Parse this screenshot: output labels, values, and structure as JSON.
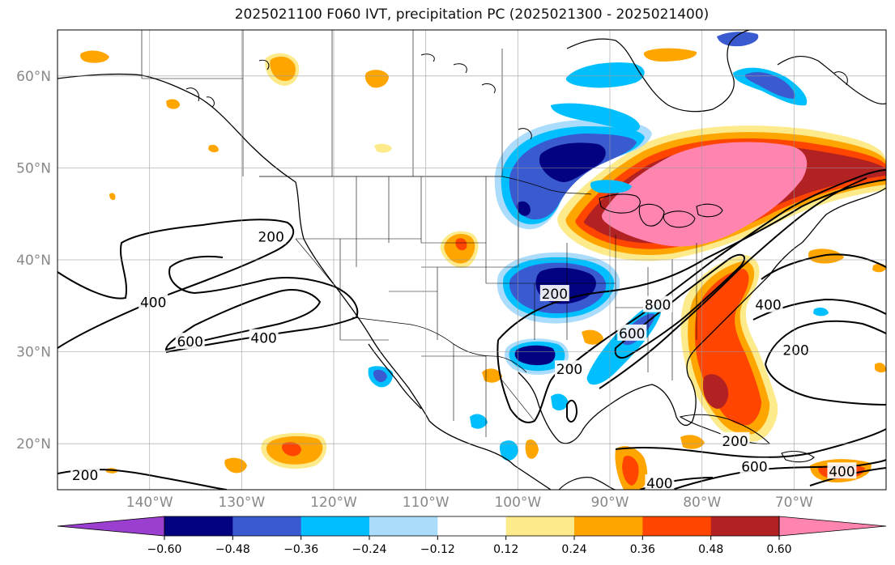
{
  "title": "2025021100 F060 IVT, precipitation PC (2025021300 - 2025021400)",
  "map": {
    "lon_range": [
      -150,
      -60
    ],
    "lat_range": [
      15,
      65
    ],
    "lon_ticks": [
      {
        "lon": -140,
        "label": "140°W"
      },
      {
        "lon": -130,
        "label": "130°W"
      },
      {
        "lon": -120,
        "label": "120°W"
      },
      {
        "lon": -110,
        "label": "110°W"
      },
      {
        "lon": -100,
        "label": "100°W"
      },
      {
        "lon": -90,
        "label": "90°W"
      },
      {
        "lon": -80,
        "label": "80°W"
      },
      {
        "lon": -70,
        "label": "70°W"
      }
    ],
    "lat_ticks": [
      {
        "lat": 60,
        "label": "60°N"
      },
      {
        "lat": 50,
        "label": "50°N"
      },
      {
        "lat": 40,
        "label": "40°N"
      },
      {
        "lat": 30,
        "label": "30°N"
      },
      {
        "lat": 20,
        "label": "20°N"
      }
    ],
    "grid": true,
    "tick_label_color": "#888888"
  },
  "ivt_contour_labels": [
    {
      "text": "200",
      "lon": -126.8,
      "lat": 42.5
    },
    {
      "text": "400",
      "lon": -139.6,
      "lat": 35.4
    },
    {
      "text": "600",
      "lon": -135.6,
      "lat": 31.1
    },
    {
      "text": "400",
      "lon": -127.6,
      "lat": 31.5
    },
    {
      "text": "200",
      "lon": -147.0,
      "lat": 16.6
    },
    {
      "text": "200",
      "lon": -96.0,
      "lat": 36.3
    },
    {
      "text": "200",
      "lon": -94.4,
      "lat": 28.1
    },
    {
      "text": "600",
      "lon": -87.6,
      "lat": 32.0
    },
    {
      "text": "800",
      "lon": -84.8,
      "lat": 35.1
    },
    {
      "text": "400",
      "lon": -72.8,
      "lat": 35.1
    },
    {
      "text": "200",
      "lon": -69.8,
      "lat": 30.2
    },
    {
      "text": "200",
      "lon": -76.4,
      "lat": 20.3
    },
    {
      "text": "600",
      "lon": -74.3,
      "lat": 17.5
    },
    {
      "text": "400",
      "lon": -84.6,
      "lat": 15.7
    },
    {
      "text": "400",
      "lon": -64.8,
      "lat": 17.0
    }
  ],
  "colorbar": {
    "levels": [
      "−0.60",
      "−0.48",
      "−0.36",
      "−0.24",
      "−0.12",
      "0.12",
      "0.24",
      "0.36",
      "0.48",
      "0.60"
    ],
    "colors": {
      "under": "#9b3fd1",
      "c1": "#030381",
      "c2": "#3a5ad0",
      "c3": "#00bfff",
      "c4": "#acdcfb",
      "c5": "#ffffff",
      "c6": "#fdea8b",
      "c7": "#ffa500",
      "c8": "#ff4500",
      "c9": "#b22222",
      "over": "#ff85b0"
    }
  }
}
